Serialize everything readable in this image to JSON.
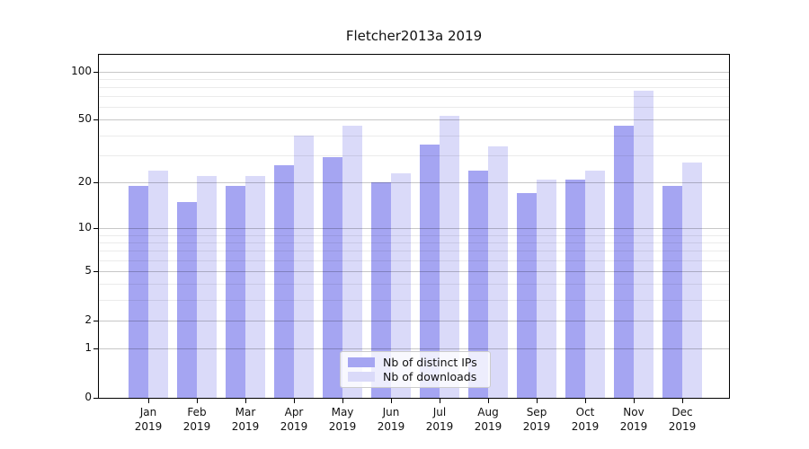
{
  "figure": {
    "title": "Fletcher2013a 2019"
  },
  "chart_data": {
    "type": "bar",
    "title": "Fletcher2013a 2019",
    "categories": [
      "Jan 2019",
      "Feb 2019",
      "Mar 2019",
      "Apr 2019",
      "May 2019",
      "Jun 2019",
      "Jul 2019",
      "Aug 2019",
      "Sep 2019",
      "Oct 2019",
      "Nov 2019",
      "Dec 2019"
    ],
    "x_tick_line1": [
      "Jan",
      "Feb",
      "Mar",
      "Apr",
      "May",
      "Jun",
      "Jul",
      "Aug",
      "Sep",
      "Oct",
      "Nov",
      "Dec"
    ],
    "x_tick_line2": "2019",
    "series": [
      {
        "name": "Nb of distinct IPs",
        "color": "#a5a5f2",
        "values": [
          19,
          15,
          19,
          26,
          29,
          20,
          35,
          24,
          17,
          21,
          46,
          19
        ]
      },
      {
        "name": "Nb of downloads",
        "color": "#dadaf9",
        "values": [
          24,
          22,
          22,
          40,
          46,
          23,
          53,
          34,
          21,
          24,
          76,
          27
        ]
      }
    ],
    "yscale": "log1p",
    "ylim": [
      0,
      127
    ],
    "y_major_ticks": [
      0,
      1,
      2,
      5,
      10,
      20,
      50,
      100
    ],
    "y_minor_ticks": [
      3,
      4,
      6,
      7,
      8,
      9,
      30,
      40,
      60,
      70,
      80,
      90
    ],
    "grid": true,
    "legend": {
      "position": "lower center",
      "entries": [
        "Nb of distinct IPs",
        "Nb of downloads"
      ]
    }
  }
}
